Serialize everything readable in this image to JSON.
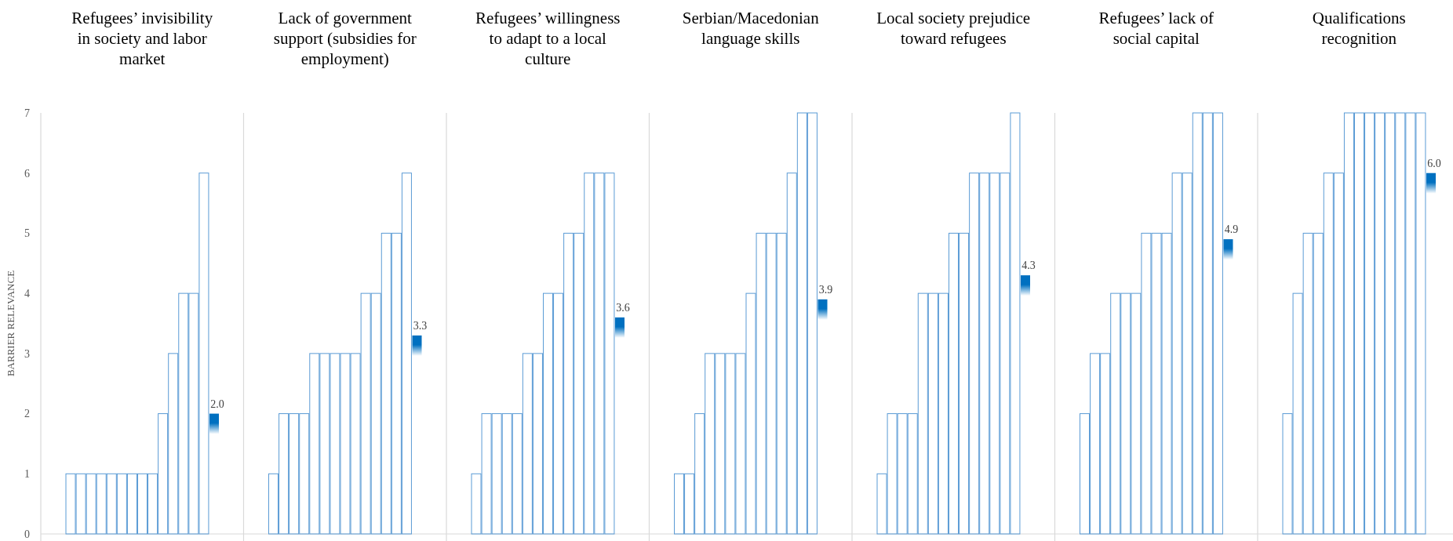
{
  "chart_data": {
    "type": "bar",
    "ylabel": "BARRIER RELEVANCE",
    "categories": [
      "Refugees’ invisibility in society and labor market",
      "Lack of government support (subsidies for employment)",
      "Refugees’ willingness to adapt to a local culture",
      "Serbian/Macedonian language skills",
      "Local society prejudice toward refugees",
      "Refugees’ lack of social capital",
      "Qualifications recognition"
    ],
    "ylim": [
      0,
      7
    ],
    "yticks": [
      0,
      1,
      2,
      3,
      4,
      5,
      6,
      7
    ],
    "series": [
      {
        "color": "#5b9bd5",
        "values": [
          1,
          1,
          1,
          1,
          1,
          2,
          2
        ]
      },
      {
        "color": "#5b9bd5",
        "values": [
          1,
          2,
          2,
          1,
          2,
          3,
          4
        ]
      },
      {
        "color": "#5b9bd5",
        "values": [
          1,
          2,
          2,
          2,
          2,
          3,
          5
        ]
      },
      {
        "color": "#5b9bd5",
        "values": [
          1,
          2,
          2,
          3,
          2,
          4,
          5
        ]
      },
      {
        "color": "#5b9bd5",
        "values": [
          1,
          3,
          2,
          3,
          4,
          4,
          6
        ]
      },
      {
        "color": "#5b9bd5",
        "values": [
          1,
          3,
          3,
          3,
          4,
          4,
          6
        ]
      },
      {
        "color": "#5b9bd5",
        "values": [
          1,
          3,
          3,
          3,
          4,
          5,
          7
        ]
      },
      {
        "color": "#5b9bd5",
        "values": [
          1,
          3,
          4,
          4,
          5,
          5,
          7
        ]
      },
      {
        "color": "#5b9bd5",
        "values": [
          1,
          3,
          4,
          5,
          5,
          5,
          7
        ]
      },
      {
        "color": "#5b9bd5",
        "values": [
          2,
          4,
          5,
          5,
          6,
          6,
          7
        ]
      },
      {
        "color": "#5b9bd5",
        "values": [
          3,
          4,
          5,
          5,
          6,
          6,
          7
        ]
      },
      {
        "color": "#5b9bd5",
        "values": [
          4,
          5,
          6,
          6,
          6,
          7,
          7
        ]
      },
      {
        "color": "#5b9bd5",
        "values": [
          4,
          5,
          6,
          7,
          6,
          7,
          7
        ]
      },
      {
        "color": "#5b9bd5",
        "values": [
          6,
          6,
          6,
          7,
          7,
          7,
          7
        ]
      },
      {
        "color": "#0070c0",
        "values": [
          2.0,
          3.3,
          3.6,
          3.9,
          4.3,
          4.9,
          6.0
        ],
        "value_labels": [
          "2.0",
          "3.3",
          "3.6",
          "3.9",
          "4.3",
          "4.9",
          "6.0"
        ]
      }
    ]
  }
}
